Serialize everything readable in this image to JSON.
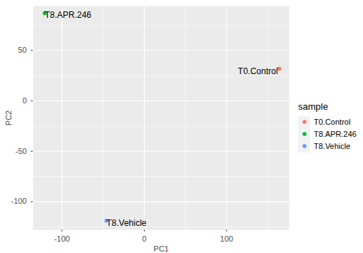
{
  "chart_data": {
    "type": "scatter",
    "x_label": "PC1",
    "y_label": "PC2",
    "legend_title": "sample",
    "legend": "right",
    "grid": true,
    "xlim": [
      -135,
      176
    ],
    "ylim": [
      -128,
      94
    ],
    "xticks": [
      -100,
      0,
      100
    ],
    "yticks": [
      -100,
      -50,
      0,
      50
    ],
    "series": [
      {
        "name": "T0.Control",
        "color": "#F8766D",
        "x": [
          164
        ],
        "y": [
          32
        ]
      },
      {
        "name": "T8.APR.246",
        "color": "#00BA38",
        "x": [
          -121
        ],
        "y": [
          87
        ]
      },
      {
        "name": "T8.Vehicle",
        "color": "#619CFF",
        "x": [
          -46
        ],
        "y": [
          -119
        ]
      }
    ]
  }
}
